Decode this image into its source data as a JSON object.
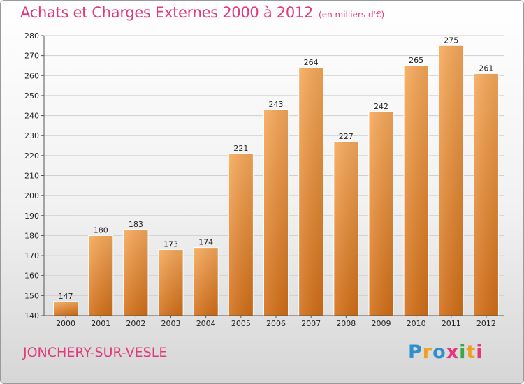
{
  "header": {
    "title": "Achats et Charges Externes 2000 à 2012",
    "unit": "(en milliers d'€)"
  },
  "footer": {
    "commune": "JONCHERY-SUR-VESLE",
    "logo_text": "Proxiti",
    "logo_colors": [
      "#2d8fce",
      "#f0a020",
      "#2d8fce",
      "#e4387b",
      "#39a847",
      "#f0a020",
      "#e4387b"
    ]
  },
  "colors": {
    "text_accent": "#e4387b",
    "bar_top": "#f7a95a",
    "bar_bottom": "#d36e16",
    "grid": "#cfcfcf"
  },
  "chart_data": {
    "type": "bar",
    "title": "Achats et Charges Externes 2000 à 2012",
    "subtitle": "(en milliers d'€)",
    "xlabel": "",
    "ylabel": "",
    "categories": [
      "2000",
      "2001",
      "2002",
      "2003",
      "2004",
      "2005",
      "2006",
      "2007",
      "2008",
      "2009",
      "2010",
      "2011",
      "2012"
    ],
    "values": [
      147,
      180,
      183,
      173,
      174,
      221,
      243,
      264,
      227,
      242,
      265,
      275,
      261
    ],
    "ylim": [
      140,
      280
    ],
    "yticks": [
      140,
      150,
      160,
      170,
      180,
      190,
      200,
      210,
      220,
      230,
      240,
      250,
      260,
      270,
      280
    ],
    "grid": true,
    "legend": "none"
  }
}
